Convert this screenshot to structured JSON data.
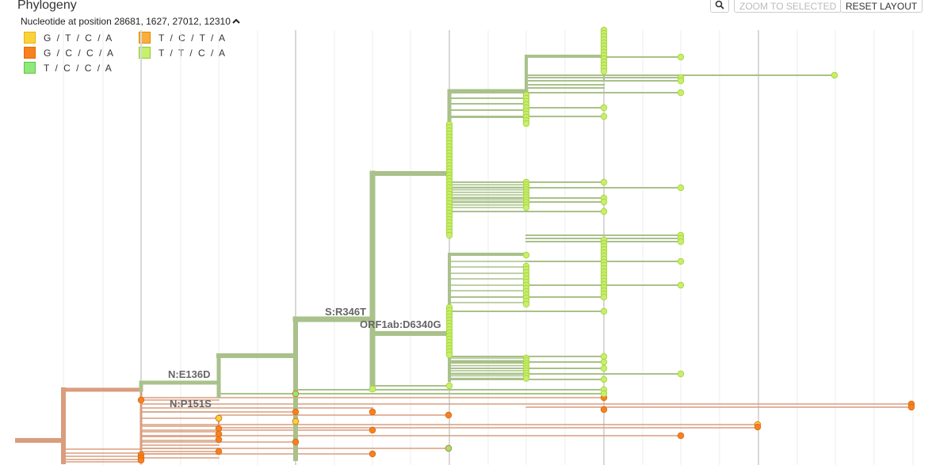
{
  "panel": {
    "title": "Phylogeny",
    "subtitle": "Nucleotide at position 28681, 1627, 27012, 12310"
  },
  "toolbar": {
    "zoom_selected_label": "ZOOM TO SELECTED",
    "reset_layout_label": "RESET LAYOUT"
  },
  "legend": {
    "items": [
      {
        "label": "G / T / C / A",
        "color": "#fcd23c",
        "border": "#e8b400"
      },
      {
        "label": "T / C / T / A",
        "color": "#fbae3c",
        "border": "#e08a00"
      },
      {
        "label": "G / C / C / A",
        "color": "#f7811f",
        "border": "#e06a00"
      },
      {
        "label": "T / T / C / A",
        "color": "#c6ef6c",
        "border": "#90c83a"
      },
      {
        "label": "T / C / C / A",
        "color": "#90e87a",
        "border": "#5fc24a"
      }
    ]
  },
  "mutations": {
    "m1": "S:R346T",
    "m2": "ORF1ab:D6340G",
    "m3": "N:E136D",
    "m4": "N:P151S"
  },
  "colors": {
    "green_branch": "#a9c18a",
    "orange_branch": "#d99d7e",
    "tip_green": "#c6ef6c",
    "tip_orange": "#f7811f",
    "tip_yellow": "#fcd23c",
    "tip_light": "#90e87a"
  }
}
